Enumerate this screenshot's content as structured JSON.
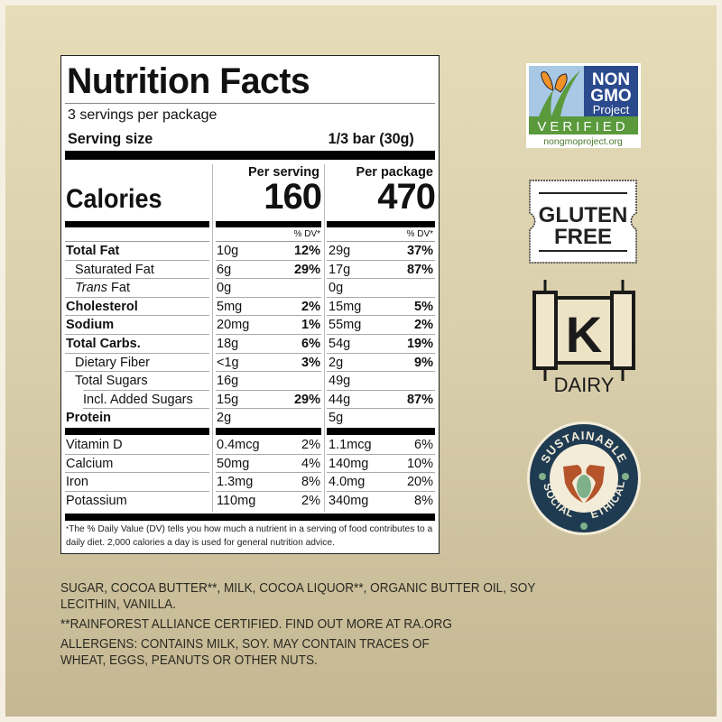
{
  "label": {
    "title": "Nutrition Facts",
    "servings_per_package": "3 servings per package",
    "serving_size_label": "Serving size",
    "serving_size_value": "1/3 bar (30g)",
    "calories_label": "Calories",
    "per_serving_label": "Per serving",
    "per_package_label": "Per package",
    "calories_per_serving": "160",
    "calories_per_package": "470",
    "dv_header": "% DV*",
    "nutrients": [
      {
        "name": "Total Fat",
        "bold": true,
        "indent": 0,
        "serving_amt": "10g",
        "serving_dv": "12%",
        "package_amt": "29g",
        "package_dv": "37%"
      },
      {
        "name": "Saturated Fat",
        "bold": false,
        "indent": 1,
        "serving_amt": "6g",
        "serving_dv": "29%",
        "package_amt": "17g",
        "package_dv": "87%"
      },
      {
        "name_italic": "Trans",
        "name": " Fat",
        "bold": false,
        "indent": 1,
        "serving_amt": "0g",
        "serving_dv": "",
        "package_amt": "0g",
        "package_dv": ""
      },
      {
        "name": "Cholesterol",
        "bold": true,
        "indent": 0,
        "serving_amt": "5mg",
        "serving_dv": "2%",
        "package_amt": "15mg",
        "package_dv": "5%"
      },
      {
        "name": "Sodium",
        "bold": true,
        "indent": 0,
        "serving_amt": "20mg",
        "serving_dv": "1%",
        "package_amt": "55mg",
        "package_dv": "2%"
      },
      {
        "name": "Total Carbs.",
        "bold": true,
        "indent": 0,
        "serving_amt": "18g",
        "serving_dv": "6%",
        "package_amt": "54g",
        "package_dv": "19%"
      },
      {
        "name": "Dietary Fiber",
        "bold": false,
        "indent": 1,
        "serving_amt": "<1g",
        "serving_dv": "3%",
        "package_amt": "2g",
        "package_dv": "9%"
      },
      {
        "name": "Total Sugars",
        "bold": false,
        "indent": 1,
        "serving_amt": "16g",
        "serving_dv": "",
        "package_amt": "49g",
        "package_dv": ""
      },
      {
        "name": "Incl. Added Sugars",
        "bold": false,
        "indent": 2,
        "serving_amt": "15g",
        "serving_dv": "29%",
        "package_amt": "44g",
        "package_dv": "87%"
      },
      {
        "name": "Protein",
        "bold": true,
        "indent": 0,
        "serving_amt": "2g",
        "serving_dv": "",
        "package_amt": "5g",
        "package_dv": ""
      }
    ],
    "vitamins": [
      {
        "name": "Vitamin D",
        "serving_amt": "0.4mcg",
        "serving_dv": "2%",
        "package_amt": "1.1mcg",
        "package_dv": "6%"
      },
      {
        "name": "Calcium",
        "serving_amt": "50mg",
        "serving_dv": "4%",
        "package_amt": "140mg",
        "package_dv": "10%"
      },
      {
        "name": "Iron",
        "serving_amt": "1.3mg",
        "serving_dv": "8%",
        "package_amt": "4.0mg",
        "package_dv": "20%"
      },
      {
        "name": "Potassium",
        "serving_amt": "110mg",
        "serving_dv": "2%",
        "package_amt": "340mg",
        "package_dv": "8%"
      }
    ],
    "footnote_star": "*",
    "footnote": "The % Daily Value (DV) tells you how much a nutrient in a serving of food contributes to a daily diet. 2,000 calories a day is used for general nutrition advice."
  },
  "ingredients": {
    "list": "SUGAR, COCOA BUTTER**, MILK, COCOA LIQUOR**,  ORGANIC BUTTER OIL, SOY LECITHIN, VANILLA.",
    "certification": "**RAINFOREST ALLIANCE CERTIFIED. FIND OUT MORE AT RA.ORG",
    "allergens": "ALLERGENS: CONTAINS MILK, SOY. MAY CONTAIN TRACES OF WHEAT, EGGS, PEANUTS OR OTHER NUTS."
  },
  "badges": {
    "nongmo": {
      "line1": "NON",
      "line2": "GMO",
      "line3": "Project",
      "verified": "VERIFIED",
      "url": "nongmoproject.org"
    },
    "gluten_free": {
      "line1": "GLUTEN",
      "line2": "FREE"
    },
    "kosher": {
      "letter": "K",
      "label": "DAIRY"
    },
    "sustainable": {
      "top": "SUSTAINABLE",
      "left": "SOCIAL",
      "right": "ETHICAL"
    }
  },
  "colors": {
    "nongmo_blue": "#2b4a8e",
    "nongmo_green": "#5a9a3c",
    "nongmo_sky": "#a8c8e6",
    "butterfly_orange": "#f0922a",
    "sustainable_navy": "#1f3b52",
    "hands_rust": "#b5532a",
    "leaf_green": "#7fb08a"
  }
}
